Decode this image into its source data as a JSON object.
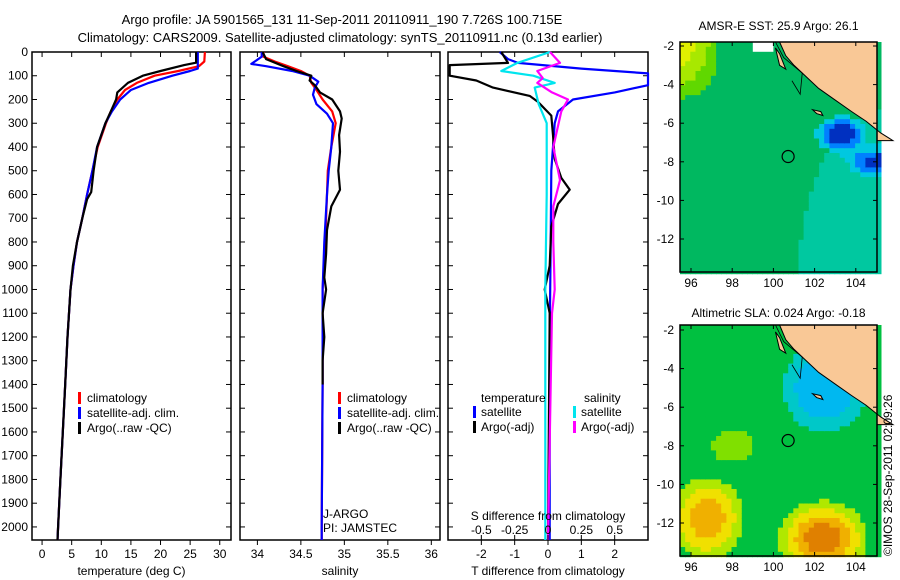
{
  "title_line1": "Argo profile: JA 5901565_131 11-Sep-2011 20110911_190 7.726S 100.715E",
  "title_line2": "Climatology: CARS2009. Satellite-adjusted climatology: synTS_20110911.nc (0.13d earlier)",
  "footer": "©IMOS 28-Sep-2011 02:09:26",
  "colors": {
    "climatology": "#ff0000",
    "satellite": "#0000ff",
    "argo": "#000000",
    "sal_satellite": "#00e5ee",
    "sal_argo": "#ff00ff",
    "land": "#f9c896"
  },
  "chart_data": [
    {
      "type": "line",
      "id": "temperature",
      "xlabel": "temperature (deg C)",
      "ylabel": "depth",
      "xlim": [
        -1.7,
        31.9
      ],
      "ylim": [
        0,
        2055
      ],
      "xticks": [
        "0",
        "5",
        "10",
        "15",
        "20",
        "25",
        "30"
      ],
      "xtick_values": [
        0,
        5,
        10,
        15,
        20,
        25,
        30
      ],
      "yticks": [
        "0",
        "100",
        "200",
        "300",
        "400",
        "500",
        "600",
        "700",
        "800",
        "900",
        "1000",
        "1100",
        "1200",
        "1300",
        "1400",
        "1500",
        "1600",
        "1700",
        "1800",
        "1900",
        "2000"
      ],
      "legend": [
        "climatology",
        "satellite-adj. clim.",
        "Argo(..raw -QC)"
      ],
      "series": [
        {
          "name": "climatology",
          "color": "#ff0000",
          "points": [
            [
              0,
              27.5
            ],
            [
              40,
              27.4
            ],
            [
              60,
              26.5
            ],
            [
              80,
              23
            ],
            [
              100,
              19
            ],
            [
              130,
              16
            ],
            [
              160,
              14
            ],
            [
              200,
              12.7
            ],
            [
              250,
              11.6
            ],
            [
              300,
              10.8
            ],
            [
              400,
              9.4
            ],
            [
              500,
              8.5
            ],
            [
              600,
              7.6
            ],
            [
              700,
              6.8
            ],
            [
              800,
              5.9
            ],
            [
              900,
              5.3
            ],
            [
              1000,
              4.8
            ],
            [
              1200,
              4.3
            ],
            [
              1400,
              3.9
            ],
            [
              1600,
              3.5
            ],
            [
              1800,
              3.1
            ],
            [
              2000,
              2.7
            ],
            [
              2055,
              2.6
            ]
          ]
        },
        {
          "name": "satellite-adj. clim.",
          "color": "#0000ff",
          "points": [
            [
              0,
              26.3
            ],
            [
              70,
              26.3
            ],
            [
              80,
              25
            ],
            [
              100,
              22
            ],
            [
              130,
              18
            ],
            [
              160,
              15
            ],
            [
              200,
              13.2
            ],
            [
              250,
              11.8
            ],
            [
              300,
              10.7
            ],
            [
              400,
              9.3
            ],
            [
              500,
              8.5
            ],
            [
              600,
              7.6
            ],
            [
              700,
              6.8
            ],
            [
              800,
              5.9
            ],
            [
              900,
              5.3
            ],
            [
              1000,
              4.8
            ],
            [
              1200,
              4.3
            ],
            [
              1400,
              3.9
            ],
            [
              1600,
              3.5
            ],
            [
              1800,
              3.1
            ],
            [
              2000,
              2.7
            ],
            [
              2055,
              2.6
            ]
          ]
        },
        {
          "name": "Argo(..raw -QC)",
          "color": "#000000",
          "points": [
            [
              0,
              26.0
            ],
            [
              45,
              26.0
            ],
            [
              55,
              24
            ],
            [
              80,
              20
            ],
            [
              100,
              17
            ],
            [
              130,
              14.5
            ],
            [
              170,
              12.7
            ],
            [
              200,
              12.5
            ],
            [
              250,
              11.6
            ],
            [
              300,
              10.7
            ],
            [
              400,
              9.3
            ],
            [
              500,
              8.7
            ],
            [
              590,
              8.3
            ],
            [
              620,
              7.6
            ],
            [
              700,
              6.8
            ],
            [
              800,
              5.9
            ],
            [
              900,
              5.2
            ],
            [
              1000,
              4.8
            ],
            [
              1200,
              4.3
            ],
            [
              1400,
              3.9
            ],
            [
              1600,
              3.5
            ],
            [
              1800,
              3.1
            ],
            [
              2000,
              2.7
            ],
            [
              2055,
              2.6
            ]
          ]
        }
      ]
    },
    {
      "type": "line",
      "id": "salinity",
      "xlabel": "salinity",
      "ylabel": "depth",
      "xlim": [
        33.8,
        36.1
      ],
      "ylim": [
        0,
        2055
      ],
      "xticks": [
        "34",
        "34.5",
        "35",
        "35.5",
        "36"
      ],
      "xtick_values": [
        34,
        34.5,
        35,
        35.5,
        36
      ],
      "legend": [
        "climatology",
        "satellite-adj. clim.",
        "Argo(..raw -QC)"
      ],
      "annotation": [
        "J-ARGO",
        "PI: JAMSTEC"
      ],
      "series": [
        {
          "name": "climatology",
          "color": "#ff0000",
          "points": [
            [
              0,
              34.07
            ],
            [
              20,
              34.07
            ],
            [
              40,
              34.2
            ],
            [
              60,
              34.35
            ],
            [
              80,
              34.5
            ],
            [
              100,
              34.6
            ],
            [
              130,
              34.62
            ],
            [
              160,
              34.68
            ],
            [
              200,
              34.75
            ],
            [
              250,
              34.86
            ],
            [
              300,
              34.9
            ],
            [
              400,
              34.85
            ],
            [
              500,
              34.81
            ],
            [
              600,
              34.8
            ],
            [
              800,
              34.78
            ],
            [
              1000,
              34.75
            ],
            [
              1200,
              34.75
            ],
            [
              1400,
              34.75
            ],
            [
              2000,
              34.74
            ],
            [
              2055,
              34.74
            ]
          ]
        },
        {
          "name": "satellite-adj. clim.",
          "color": "#0000ff",
          "points": [
            [
              0,
              34.05
            ],
            [
              20,
              34.05
            ],
            [
              50,
              33.93
            ],
            [
              60,
              34.1
            ],
            [
              80,
              34.4
            ],
            [
              100,
              34.6
            ],
            [
              125,
              34.7
            ],
            [
              150,
              34.66
            ],
            [
              180,
              34.64
            ],
            [
              220,
              34.68
            ],
            [
              260,
              34.8
            ],
            [
              300,
              34.87
            ],
            [
              400,
              34.85
            ],
            [
              500,
              34.82
            ],
            [
              600,
              34.8
            ],
            [
              800,
              34.77
            ],
            [
              1000,
              34.75
            ],
            [
              1200,
              34.75
            ],
            [
              1400,
              34.75
            ],
            [
              2000,
              34.74
            ],
            [
              2055,
              34.74
            ]
          ]
        },
        {
          "name": "Argo(..raw -QC)",
          "color": "#000000",
          "points": [
            [
              0,
              34.06
            ],
            [
              30,
              34.1
            ],
            [
              60,
              34.3
            ],
            [
              80,
              34.45
            ],
            [
              100,
              34.62
            ],
            [
              120,
              34.6
            ],
            [
              140,
              34.66
            ],
            [
              170,
              34.72
            ],
            [
              200,
              34.86
            ],
            [
              250,
              34.95
            ],
            [
              280,
              34.97
            ],
            [
              350,
              34.94
            ],
            [
              420,
              34.95
            ],
            [
              500,
              34.93
            ],
            [
              580,
              34.95
            ],
            [
              650,
              34.85
            ],
            [
              750,
              34.8
            ],
            [
              850,
              34.79
            ],
            [
              950,
              34.77
            ],
            [
              1000,
              34.79
            ],
            [
              1100,
              34.75
            ],
            [
              1200,
              34.77
            ],
            [
              1300,
              34.75
            ],
            [
              1400,
              34.75
            ]
          ]
        }
      ]
    },
    {
      "type": "line",
      "id": "difference",
      "xlabel": "T difference from climatology",
      "x2label": "S difference from climatology",
      "ylabel": "depth",
      "xlim": [
        -3,
        3
      ],
      "x2lim": [
        -0.75,
        0.75
      ],
      "ylim": [
        0,
        2055
      ],
      "xticks": [
        "-2",
        "-1",
        "0",
        "1",
        "2"
      ],
      "xtick_values": [
        -2,
        -1,
        0,
        1,
        2
      ],
      "x2ticks": [
        "-0.5",
        "-0.25",
        "0",
        "0.25",
        "0.5"
      ],
      "x2tick_values": [
        -0.5,
        -0.25,
        0,
        0.25,
        0.5
      ],
      "legend_headers": [
        "temperature",
        "salinity"
      ],
      "legend": [
        "satellite",
        "Argo(-adj)",
        "satellite",
        "Argo(-adj)"
      ],
      "series": [
        {
          "name": "temperature satellite",
          "axis": "T",
          "color": "#0000ff",
          "points": [
            [
              0,
              -1.45
            ],
            [
              30,
              -1.2
            ],
            [
              46,
              -0.9
            ],
            [
              70,
              1.0
            ],
            [
              90,
              3.0
            ],
            [
              140,
              3.0
            ],
            [
              170,
              2.0
            ],
            [
              200,
              0.75
            ],
            [
              250,
              0.3
            ],
            [
              300,
              0.2
            ],
            [
              500,
              0.1
            ],
            [
              800,
              0.08
            ],
            [
              1200,
              0.05
            ],
            [
              2055,
              0.05
            ]
          ]
        },
        {
          "name": "temperature Argo(-adj)",
          "axis": "T",
          "color": "#000000",
          "points": [
            [
              0,
              -1.4
            ],
            [
              46,
              -1.2
            ],
            [
              55,
              -2.95
            ],
            [
              100,
              -2.95
            ],
            [
              120,
              -2.15
            ],
            [
              150,
              -1.65
            ],
            [
              185,
              -0.55
            ],
            [
              210,
              -0.3
            ],
            [
              268,
              0.1
            ],
            [
              350,
              0.15
            ],
            [
              450,
              0.2
            ],
            [
              530,
              0.4
            ],
            [
              580,
              0.65
            ],
            [
              640,
              0.3
            ],
            [
              735,
              0.1
            ],
            [
              900,
              0.05
            ],
            [
              1000,
              -0.1
            ],
            [
              1100,
              0.05
            ],
            [
              2055,
              0.0
            ]
          ]
        },
        {
          "name": "salinity satellite",
          "axis": "S",
          "color": "#00e5ee",
          "points": [
            [
              0,
              0.015
            ],
            [
              46,
              -0.23
            ],
            [
              80,
              -0.35
            ],
            [
              100,
              -0.11
            ],
            [
              130,
              0.05
            ],
            [
              150,
              -0.1
            ],
            [
              220,
              -0.07
            ],
            [
              300,
              -0.01
            ],
            [
              600,
              -0.01
            ],
            [
              1000,
              -0.02
            ],
            [
              2055,
              -0.02
            ]
          ]
        },
        {
          "name": "salinity Argo(-adj)",
          "axis": "S",
          "color": "#ff00ff",
          "points": [
            [
              0,
              0.015
            ],
            [
              46,
              0.09
            ],
            [
              80,
              -0.08
            ],
            [
              110,
              -0.04
            ],
            [
              130,
              -0.08
            ],
            [
              170,
              0.03
            ],
            [
              200,
              0.15
            ],
            [
              250,
              0.1
            ],
            [
              400,
              0.04
            ],
            [
              540,
              0.09
            ],
            [
              650,
              0.04
            ],
            [
              800,
              0.04
            ],
            [
              1000,
              0.05
            ],
            [
              1100,
              0.03
            ],
            [
              1400,
              0.02
            ],
            [
              2055,
              0.0
            ]
          ]
        }
      ]
    }
  ],
  "maps": [
    {
      "id": "sst",
      "title": "AMSR-E SST: 25.9 Argo: 26.1",
      "lon_ticks": [
        "96",
        "98",
        "100",
        "102",
        "104"
      ],
      "lat_ticks": [
        "-2",
        "-4",
        "-6",
        "-8",
        "-10",
        "-12"
      ],
      "argo_position": {
        "lon": 100.715,
        "lat": -7.726
      }
    },
    {
      "id": "sla",
      "title": "Altimetric SLA: 0.024 Argo: -0.18",
      "lon_ticks": [
        "96",
        "98",
        "100",
        "102",
        "104"
      ],
      "lat_ticks": [
        "-2",
        "-4",
        "-6",
        "-8",
        "-10",
        "-12"
      ],
      "argo_position": {
        "lon": 100.715,
        "lat": -7.726
      }
    }
  ]
}
